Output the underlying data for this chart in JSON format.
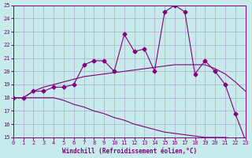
{
  "xlabel": "Windchill (Refroidissement éolien,°C)",
  "background_color": "#c8eaea",
  "grid_color": "#aaaacc",
  "line_color": "#800080",
  "xlim": [
    0,
    23
  ],
  "ylim": [
    15,
    25
  ],
  "yticks": [
    15,
    16,
    17,
    18,
    19,
    20,
    21,
    22,
    23,
    24,
    25
  ],
  "xticks": [
    0,
    1,
    2,
    3,
    4,
    5,
    6,
    7,
    8,
    9,
    10,
    11,
    12,
    13,
    14,
    15,
    16,
    17,
    18,
    19,
    20,
    21,
    22,
    23
  ],
  "series": [
    {
      "x": [
        0,
        1,
        2,
        3,
        4,
        5,
        6,
        7,
        8,
        9,
        10,
        11,
        12,
        13,
        14,
        15,
        16,
        17,
        18,
        19,
        20,
        21,
        22,
        23
      ],
      "y": [
        18,
        18,
        18.5,
        18.5,
        18.8,
        18.8,
        19.0,
        20.5,
        20.8,
        20.8,
        20.0,
        22.8,
        21.5,
        21.7,
        20.0,
        24.5,
        25.0,
        24.5,
        19.8,
        20.8,
        20.0,
        19.0,
        16.8,
        14.8
      ],
      "marker": "D",
      "markersize": 2.5
    },
    {
      "x": [
        0,
        1,
        2,
        3,
        4,
        5,
        6,
        7,
        8,
        9,
        10,
        11,
        12,
        13,
        14,
        15,
        16,
        17,
        18,
        19,
        20,
        21,
        22,
        23
      ],
      "y": [
        18,
        18,
        18.5,
        18.8,
        19.0,
        19.2,
        19.4,
        19.6,
        19.7,
        19.8,
        19.9,
        20.0,
        20.1,
        20.2,
        20.3,
        20.4,
        20.5,
        20.5,
        20.5,
        20.5,
        20.2,
        19.8,
        19.2,
        18.5
      ],
      "marker": null,
      "markersize": 0
    },
    {
      "x": [
        0,
        1,
        2,
        3,
        4,
        5,
        6,
        7,
        8,
        9,
        10,
        11,
        12,
        13,
        14,
        15,
        16,
        17,
        18,
        19,
        20,
        21,
        22,
        23
      ],
      "y": [
        18,
        18,
        18.0,
        18.0,
        18.0,
        17.8,
        17.5,
        17.3,
        17.0,
        16.8,
        16.5,
        16.3,
        16.0,
        15.8,
        15.6,
        15.4,
        15.3,
        15.2,
        15.1,
        15.0,
        15.0,
        15.0,
        14.9,
        14.8
      ],
      "marker": null,
      "markersize": 0
    }
  ]
}
